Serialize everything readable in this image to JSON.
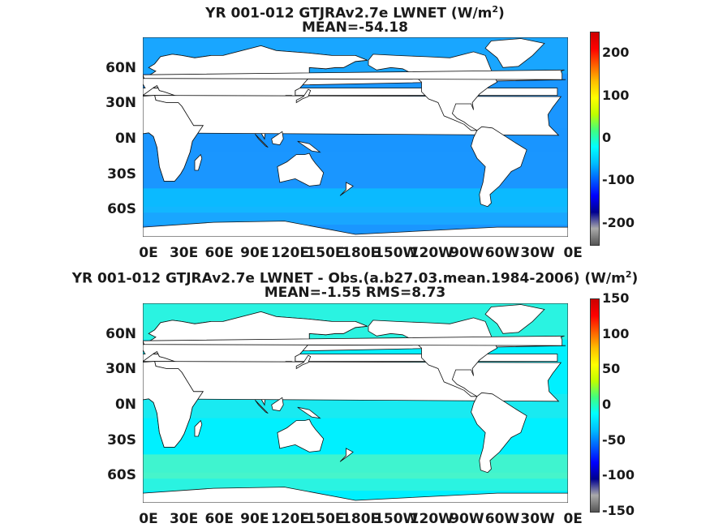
{
  "panels": [
    {
      "title_line1": "YR 001-012 GTJRAv2.7e  LWNET (W/m",
      "title_sup": "2",
      "title_close": ")",
      "title_line2": "MEAN=-54.18",
      "colorbar_ticks": [
        "200",
        "100",
        "0",
        "-100",
        "-200"
      ],
      "colorbar_range": [
        -250,
        250
      ],
      "ocean_color": "#1a96ff",
      "field_colors": [
        "#1ab4ff",
        "#00d8ff",
        "#1a96ff"
      ]
    },
    {
      "title_line1": "YR 001-012 GTJRAv2.7e LWNET - Obs.(a.b27.03.mean.1984-2006) (W/m",
      "title_sup": "2",
      "title_close": ")",
      "title_line2": "MEAN=-1.55 RMS=8.73",
      "colorbar_ticks": [
        "150",
        "100",
        "50",
        "0",
        "-50",
        "-100",
        "-150"
      ],
      "colorbar_range": [
        -150,
        150
      ],
      "ocean_color": "#00f0ff",
      "field_colors": [
        "#4cf5c8",
        "#72f7a8",
        "#2ee6e6"
      ]
    }
  ],
  "lat_labels": [
    "60N",
    "30N",
    "0N",
    "30S",
    "60S"
  ],
  "lon_labels": [
    "0E",
    "30E",
    "60E",
    "90E",
    "120E",
    "150E",
    "180E",
    "150W",
    "120W",
    "90W",
    "60W",
    "30W",
    "0E"
  ],
  "colors": {
    "land": "#ffffff",
    "coast": "#111111",
    "colorbar_stops": [
      "#555555",
      "#aaaaaa",
      "#00008f",
      "#0000ff",
      "#0060ff",
      "#00bfff",
      "#00ffff",
      "#40ff80",
      "#bfff00",
      "#ffff00",
      "#ffbf00",
      "#ff6000",
      "#ff0000",
      "#cc0000"
    ]
  }
}
